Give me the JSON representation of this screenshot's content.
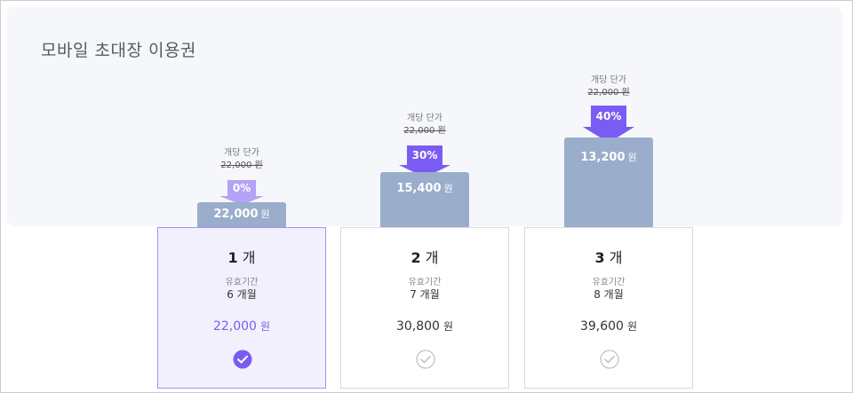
{
  "title": "모바일 초대장 이용권",
  "colors": {
    "accent": "#7a5cf2",
    "bar": "#9aadcb",
    "arrow_strong": "#7a5cf2",
    "arrow_light": "#b4a2f7",
    "panel_bg": "#f5f7fb",
    "selected_bg": "#f3f0fd"
  },
  "unit_price_label": "개당 단가",
  "currency": "원",
  "plans": [
    {
      "qty": "1",
      "qty_unit": "개",
      "period_label": "유효기간",
      "period": "6 개월",
      "original_unit_price": "22,000 원",
      "discount": "0%",
      "discount_pct": 0,
      "unit_price": "22,000",
      "price": "22,000",
      "selected": true,
      "check_icon": "check-circle-filled-icon"
    },
    {
      "qty": "2",
      "qty_unit": "개",
      "period_label": "유효기간",
      "period": "7 개월",
      "original_unit_price": "22,000 원",
      "discount": "30%",
      "discount_pct": 30,
      "unit_price": "15,400",
      "price": "30,800",
      "selected": false,
      "check_icon": "check-circle-outline-icon"
    },
    {
      "qty": "3",
      "qty_unit": "개",
      "period_label": "유효기간",
      "period": "8 개월",
      "original_unit_price": "22,000 원",
      "discount": "40%",
      "discount_pct": 40,
      "unit_price": "13,200",
      "price": "39,600",
      "selected": false,
      "check_icon": "check-circle-outline-icon"
    }
  ]
}
